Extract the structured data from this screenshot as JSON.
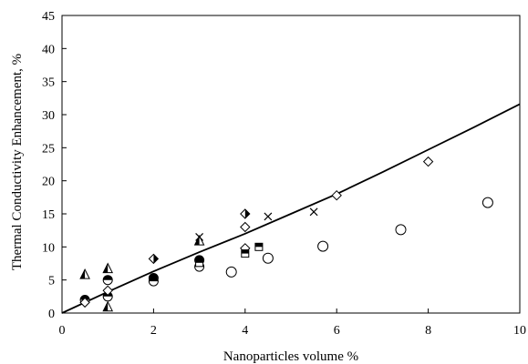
{
  "chart_data": {
    "type": "scatter",
    "title": "",
    "xlabel": "Nanoparticles volume %",
    "ylabel": "Thermal Conductivity Enhancement, %",
    "xlim": [
      0,
      10
    ],
    "ylim": [
      0,
      45
    ],
    "xticks": [
      0,
      2,
      4,
      6,
      8,
      10
    ],
    "yticks": [
      0,
      5,
      10,
      15,
      20,
      25,
      30,
      35,
      40,
      45
    ],
    "grid": false,
    "legend": "none",
    "colors": {
      "marker": "#000000",
      "fill_white": "#ffffff",
      "line": "#000000"
    },
    "series": [
      {
        "marker": "triangle-half",
        "points": [
          [
            0.5,
            5.9
          ],
          [
            1.0,
            6.8
          ],
          [
            1.0,
            1.0
          ],
          [
            3.0,
            11.0
          ]
        ]
      },
      {
        "marker": "circle-half",
        "points": [
          [
            0.5,
            2.0
          ],
          [
            1.0,
            5.0
          ],
          [
            1.0,
            2.5
          ],
          [
            2.0,
            5.3
          ],
          [
            2.0,
            4.8
          ],
          [
            3.0,
            8.0
          ],
          [
            3.0,
            7.0
          ]
        ]
      },
      {
        "marker": "diamond-open",
        "points": [
          [
            0.5,
            1.6
          ],
          [
            1.0,
            3.4
          ],
          [
            4.0,
            13.0
          ],
          [
            4.0,
            9.8
          ],
          [
            6.0,
            17.8
          ],
          [
            8.0,
            22.9
          ]
        ]
      },
      {
        "marker": "diamond-half",
        "points": [
          [
            2.0,
            8.2
          ],
          [
            4.0,
            15.0
          ]
        ]
      },
      {
        "marker": "square-half",
        "points": [
          [
            3.0,
            7.6
          ],
          [
            4.0,
            9.0
          ],
          [
            4.3,
            10.0
          ]
        ]
      },
      {
        "marker": "x",
        "points": [
          [
            3.0,
            11.5
          ],
          [
            4.5,
            14.6
          ],
          [
            5.5,
            15.3
          ]
        ]
      },
      {
        "marker": "circle-open",
        "points": [
          [
            3.7,
            6.2
          ],
          [
            4.5,
            8.3
          ],
          [
            5.7,
            10.1
          ],
          [
            7.4,
            12.6
          ],
          [
            9.3,
            16.7
          ]
        ]
      }
    ],
    "fit_curve": {
      "x": [
        0,
        1,
        2,
        3,
        4,
        5,
        6,
        7,
        8,
        9,
        10
      ],
      "y": [
        0,
        3.2,
        6.3,
        9.2,
        12.0,
        15.0,
        18.0,
        21.3,
        24.7,
        28.1,
        31.6
      ]
    }
  }
}
